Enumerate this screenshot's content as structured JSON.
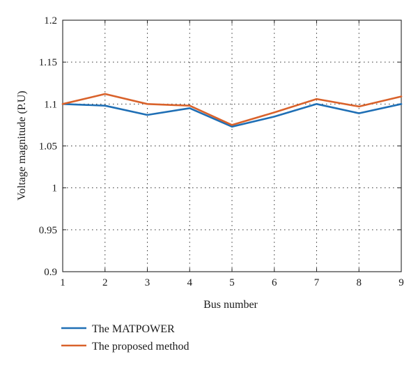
{
  "chart_data": {
    "type": "line",
    "xlabel": "Bus number",
    "ylabel": "Voltage magnitude (P.U)",
    "xlim": [
      1,
      9
    ],
    "ylim": [
      0.9,
      1.2
    ],
    "x": [
      1,
      2,
      3,
      4,
      5,
      6,
      7,
      8,
      9
    ],
    "x_ticks": [
      "1",
      "2",
      "3",
      "4",
      "5",
      "6",
      "7",
      "8",
      "9"
    ],
    "y_ticks": [
      0.9,
      0.95,
      1.0,
      1.05,
      1.1,
      1.15,
      1.2
    ],
    "y_tick_labels": [
      "0.9",
      "0.95",
      "1",
      "1.05",
      "1.1",
      "1.15",
      "1.2"
    ],
    "grid": true,
    "legend_position": "bottom-left, outside plot",
    "series": [
      {
        "name": "The MATPOWER",
        "color": "#1f6fb5",
        "values": [
          1.1,
          1.098,
          1.087,
          1.095,
          1.073,
          1.085,
          1.1,
          1.089,
          1.1
        ]
      },
      {
        "name": "The proposed method",
        "color": "#d9622b",
        "values": [
          1.1,
          1.112,
          1.1,
          1.098,
          1.075,
          1.09,
          1.106,
          1.097,
          1.109
        ]
      }
    ]
  }
}
